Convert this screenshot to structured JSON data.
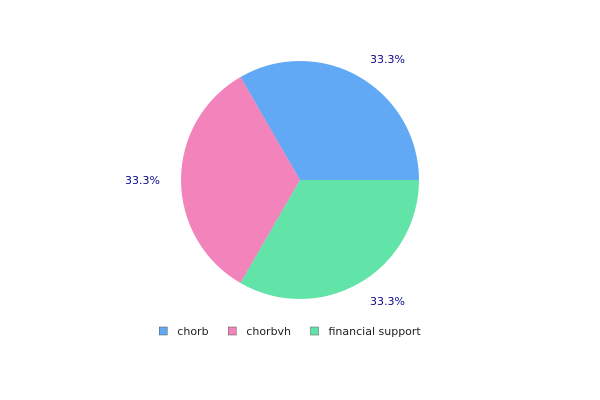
{
  "chart_data": {
    "type": "pie",
    "title": "",
    "categories": [
      "chorb",
      "chorbvh",
      "financial support"
    ],
    "values": [
      1,
      1,
      1
    ],
    "data_labels": [
      "33.3%",
      "33.3%",
      "33.3%"
    ],
    "colors": [
      "#62a9f5",
      "#f283bb",
      "#62e3a8"
    ],
    "start_angle_deg": 0,
    "direction": "counterclockwise",
    "legend": "bottom",
    "label_color": "#0a0a8c"
  }
}
